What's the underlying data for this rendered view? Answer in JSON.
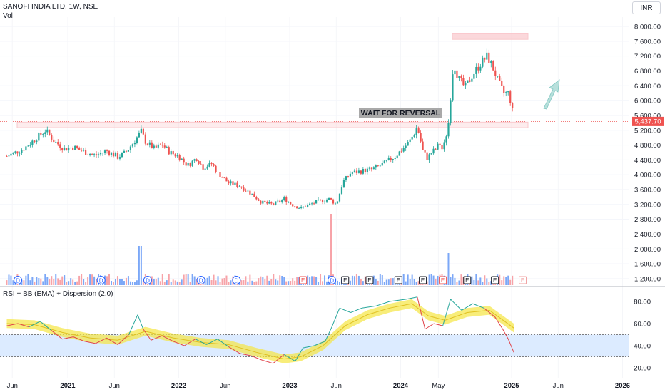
{
  "header": {
    "symbol_line": "SANOFI INDIA LTD, 1W, NSE",
    "volume_label": "Vol",
    "currency": "INR"
  },
  "annotation": {
    "text": "WAIT FOR REVERSAL"
  },
  "price_tag": "5,437.70",
  "rsi_pane": {
    "title": "RSI + BB (EMA) + Dispersion (2.0)"
  },
  "colors": {
    "up": "#26a69a",
    "down": "#ef5350",
    "volume_up": "#7ba7f7",
    "volume_down": "#f7a3a8",
    "zone": "#f9c8cc",
    "bb_band": "#f5e642",
    "rsi_line_down": "#e0434a",
    "rsi_line_up": "#26a69a",
    "rsi_fill": "#dcebff"
  },
  "chart_data": [
    {
      "type": "candlestick",
      "x_axis_labels": [
        "Jun",
        "2021",
        "Jun",
        "2022",
        "Jun",
        "2023",
        "Jun",
        "2024",
        "May",
        "2025",
        "Jun",
        "2026"
      ],
      "y_ticks": [
        "8,000.00",
        "7,600.00",
        "7,200.00",
        "6,800.00",
        "6,400.00",
        "6,000.00",
        "5,600.00",
        "5,200.00",
        "4,800.00",
        "4,400.00",
        "4,000.00",
        "3,600.00",
        "3,200.00",
        "2,800.00",
        "2,400.00",
        "2,000.00",
        "1,600.00",
        "1,200.00"
      ],
      "ylim": [
        1100,
        8200
      ],
      "last_price": 5437.7,
      "resistance_zone": [
        5270,
        5420
      ],
      "top_zone": [
        7650,
        7800
      ],
      "price_path": [
        [
          2020.45,
          4500
        ],
        [
          2020.6,
          4700
        ],
        [
          2020.72,
          5000
        ],
        [
          2020.8,
          5200
        ],
        [
          2020.88,
          4900
        ],
        [
          2020.97,
          4700
        ],
        [
          2021.05,
          4750
        ],
        [
          2021.15,
          4620
        ],
        [
          2021.25,
          4520
        ],
        [
          2021.35,
          4650
        ],
        [
          2021.45,
          4480
        ],
        [
          2021.52,
          4600
        ],
        [
          2021.6,
          4900
        ],
        [
          2021.66,
          5180
        ],
        [
          2021.7,
          4900
        ],
        [
          2021.78,
          4700
        ],
        [
          2021.85,
          4820
        ],
        [
          2021.92,
          4600
        ],
        [
          2022.0,
          4500
        ],
        [
          2022.08,
          4250
        ],
        [
          2022.16,
          4450
        ],
        [
          2022.22,
          4200
        ],
        [
          2022.3,
          4300
        ],
        [
          2022.35,
          4050
        ],
        [
          2022.45,
          3780
        ],
        [
          2022.55,
          3700
        ],
        [
          2022.65,
          3500
        ],
        [
          2022.75,
          3250
        ],
        [
          2022.85,
          3200
        ],
        [
          2022.95,
          3350
        ],
        [
          2023.02,
          3200
        ],
        [
          2023.1,
          3100
        ],
        [
          2023.18,
          3200
        ],
        [
          2023.28,
          3300
        ],
        [
          2023.36,
          3350
        ],
        [
          2023.42,
          3200
        ],
        [
          2023.48,
          3800
        ],
        [
          2023.55,
          4050
        ],
        [
          2023.65,
          4100
        ],
        [
          2023.75,
          4150
        ],
        [
          2023.85,
          4300
        ],
        [
          2023.95,
          4500
        ],
        [
          2024.02,
          4700
        ],
        [
          2024.08,
          4900
        ],
        [
          2024.12,
          5100
        ],
        [
          2024.15,
          5300
        ],
        [
          2024.2,
          4650
        ],
        [
          2024.24,
          4450
        ],
        [
          2024.28,
          4600
        ],
        [
          2024.32,
          4700
        ],
        [
          2024.35,
          4850
        ],
        [
          2024.38,
          4650
        ],
        [
          2024.42,
          5200
        ],
        [
          2024.44,
          5600
        ],
        [
          2024.46,
          6600
        ],
        [
          2024.48,
          7000
        ],
        [
          2024.52,
          6600
        ],
        [
          2024.58,
          6350
        ],
        [
          2024.65,
          6700
        ],
        [
          2024.72,
          7000
        ],
        [
          2024.78,
          7200
        ],
        [
          2024.83,
          6900
        ],
        [
          2024.88,
          6500
        ],
        [
          2024.93,
          6200
        ],
        [
          2024.97,
          6200
        ],
        [
          2025.0,
          5900
        ],
        [
          2025.02,
          5438
        ]
      ],
      "volume_spikes": [
        {
          "x": 2021.65,
          "level": 0.55
        },
        {
          "x": 2023.37,
          "level": 1.0
        },
        {
          "x": 2024.43,
          "level": 0.45
        }
      ]
    },
    {
      "type": "line",
      "y_ticks": [
        "80.00",
        "60.00",
        "40.00",
        "20.00"
      ],
      "ylim": [
        14,
        88
      ],
      "band": [
        30,
        50
      ],
      "rsi": [
        [
          2020.45,
          58
        ],
        [
          2020.55,
          60
        ],
        [
          2020.65,
          57
        ],
        [
          2020.75,
          62
        ],
        [
          2020.85,
          54
        ],
        [
          2020.95,
          46
        ],
        [
          2021.05,
          48
        ],
        [
          2021.15,
          44
        ],
        [
          2021.25,
          42
        ],
        [
          2021.35,
          47
        ],
        [
          2021.45,
          41
        ],
        [
          2021.55,
          50
        ],
        [
          2021.63,
          68
        ],
        [
          2021.68,
          55
        ],
        [
          2021.75,
          45
        ],
        [
          2021.85,
          49
        ],
        [
          2021.95,
          44
        ],
        [
          2022.05,
          40
        ],
        [
          2022.15,
          46
        ],
        [
          2022.25,
          41
        ],
        [
          2022.35,
          46
        ],
        [
          2022.45,
          39
        ],
        [
          2022.55,
          33
        ],
        [
          2022.65,
          31
        ],
        [
          2022.75,
          27
        ],
        [
          2022.85,
          24
        ],
        [
          2022.95,
          32
        ],
        [
          2023.05,
          26
        ],
        [
          2023.12,
          38
        ],
        [
          2023.22,
          40
        ],
        [
          2023.32,
          44
        ],
        [
          2023.38,
          57
        ],
        [
          2023.45,
          74
        ],
        [
          2023.55,
          70
        ],
        [
          2023.65,
          74
        ],
        [
          2023.78,
          76
        ],
        [
          2023.9,
          80
        ],
        [
          2024.05,
          82
        ],
        [
          2024.15,
          84
        ],
        [
          2024.22,
          55
        ],
        [
          2024.3,
          60
        ],
        [
          2024.38,
          58
        ],
        [
          2024.45,
          82
        ],
        [
          2024.55,
          72
        ],
        [
          2024.65,
          78
        ],
        [
          2024.75,
          74
        ],
        [
          2024.85,
          66
        ],
        [
          2024.92,
          55
        ],
        [
          2024.97,
          46
        ],
        [
          2025.02,
          34
        ]
      ],
      "bb_mid": [
        [
          2020.45,
          60
        ],
        [
          2020.7,
          59
        ],
        [
          2020.95,
          52
        ],
        [
          2021.2,
          47
        ],
        [
          2021.45,
          45
        ],
        [
          2021.7,
          53
        ],
        [
          2021.95,
          47
        ],
        [
          2022.2,
          43
        ],
        [
          2022.45,
          41
        ],
        [
          2022.7,
          34
        ],
        [
          2022.95,
          28
        ],
        [
          2023.1,
          30
        ],
        [
          2023.3,
          40
        ],
        [
          2023.5,
          58
        ],
        [
          2023.7,
          68
        ],
        [
          2023.9,
          74
        ],
        [
          2024.1,
          78
        ],
        [
          2024.25,
          67
        ],
        [
          2024.4,
          63
        ],
        [
          2024.6,
          70
        ],
        [
          2024.8,
          72
        ],
        [
          2025.02,
          56
        ]
      ]
    }
  ]
}
